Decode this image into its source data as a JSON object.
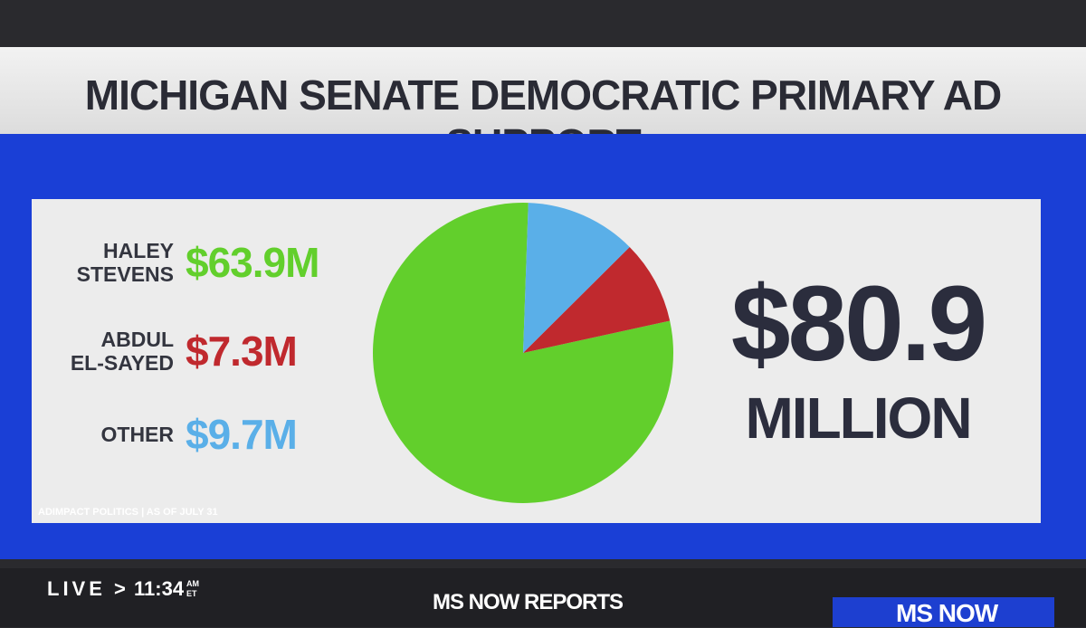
{
  "chart_data": {
    "type": "pie",
    "title": "MICHIGAN SENATE DEMOCRATIC PRIMARY AD SUPPORT",
    "categories": [
      "HALEY STEVENS",
      "ABDUL EL-SAYED",
      "OTHER"
    ],
    "values": [
      63.9,
      7.3,
      9.7
    ],
    "value_labels": [
      "$63.9M",
      "$7.3M",
      "$9.7M"
    ],
    "colors": [
      "#62cf2c",
      "#c0292e",
      "#5aafe8"
    ],
    "total_label": "$80.9",
    "total_unit": "MILLION",
    "source": "ADIMPACT POLITICS | AS OF JULY 31"
  },
  "ticker": {
    "live": "LIVE",
    "separator": ">",
    "time": "11:34",
    "am": "AM",
    "et": "ET",
    "show": "MS NOW REPORTS",
    "network": "MS NOW"
  }
}
